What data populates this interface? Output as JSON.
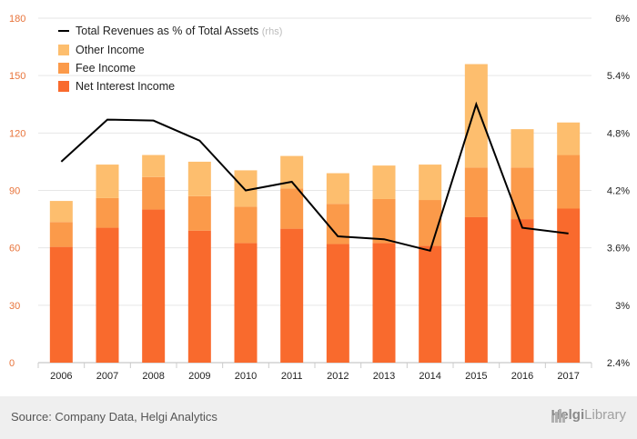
{
  "chart_data": {
    "type": "bar",
    "stacked": true,
    "categories": [
      "2006",
      "2007",
      "2008",
      "2009",
      "2010",
      "2011",
      "2012",
      "2013",
      "2014",
      "2015",
      "2016",
      "2017"
    ],
    "series": [
      {
        "name": "Net Interest Income",
        "color": "#f96a2d",
        "values": [
          60.5,
          70.5,
          80,
          69,
          62.5,
          70,
          62,
          62.5,
          61,
          76,
          75,
          80.5
        ]
      },
      {
        "name": "Fee Income",
        "color": "#fb9a4a",
        "values": [
          13,
          15.5,
          17,
          18,
          19,
          21,
          21,
          23,
          24,
          26,
          27,
          28
        ]
      },
      {
        "name": "Other Income",
        "color": "#fdbe6e",
        "values": [
          11,
          17.5,
          11.5,
          18,
          19,
          17,
          16,
          17.5,
          18.5,
          54,
          20,
          17
        ]
      }
    ],
    "line_series": {
      "name": "Total Revenues as % of Total Assets",
      "note": "(rhs)",
      "color": "#000000",
      "values": [
        4.5,
        4.94,
        4.93,
        4.72,
        4.2,
        4.29,
        3.72,
        3.69,
        3.57,
        5.1,
        3.81,
        3.75
      ]
    },
    "y_left": {
      "ticks": [
        "0",
        "30",
        "60",
        "90",
        "120",
        "150",
        "180"
      ],
      "ylim": [
        0,
        180
      ]
    },
    "y_right": {
      "ticks": [
        "2.4%",
        "3%",
        "3.6%",
        "4.2%",
        "4.8%",
        "5.4%",
        "6%"
      ],
      "ylim": [
        2.4,
        6.0
      ]
    },
    "legend_placement": "top-left",
    "grid": true
  },
  "footer": {
    "source": "Source: Company Data, Helgi Analytics",
    "brand_part1": "Helgi",
    "brand_part2": "Library",
    "brand_icon": "helgi-logo-icon"
  }
}
